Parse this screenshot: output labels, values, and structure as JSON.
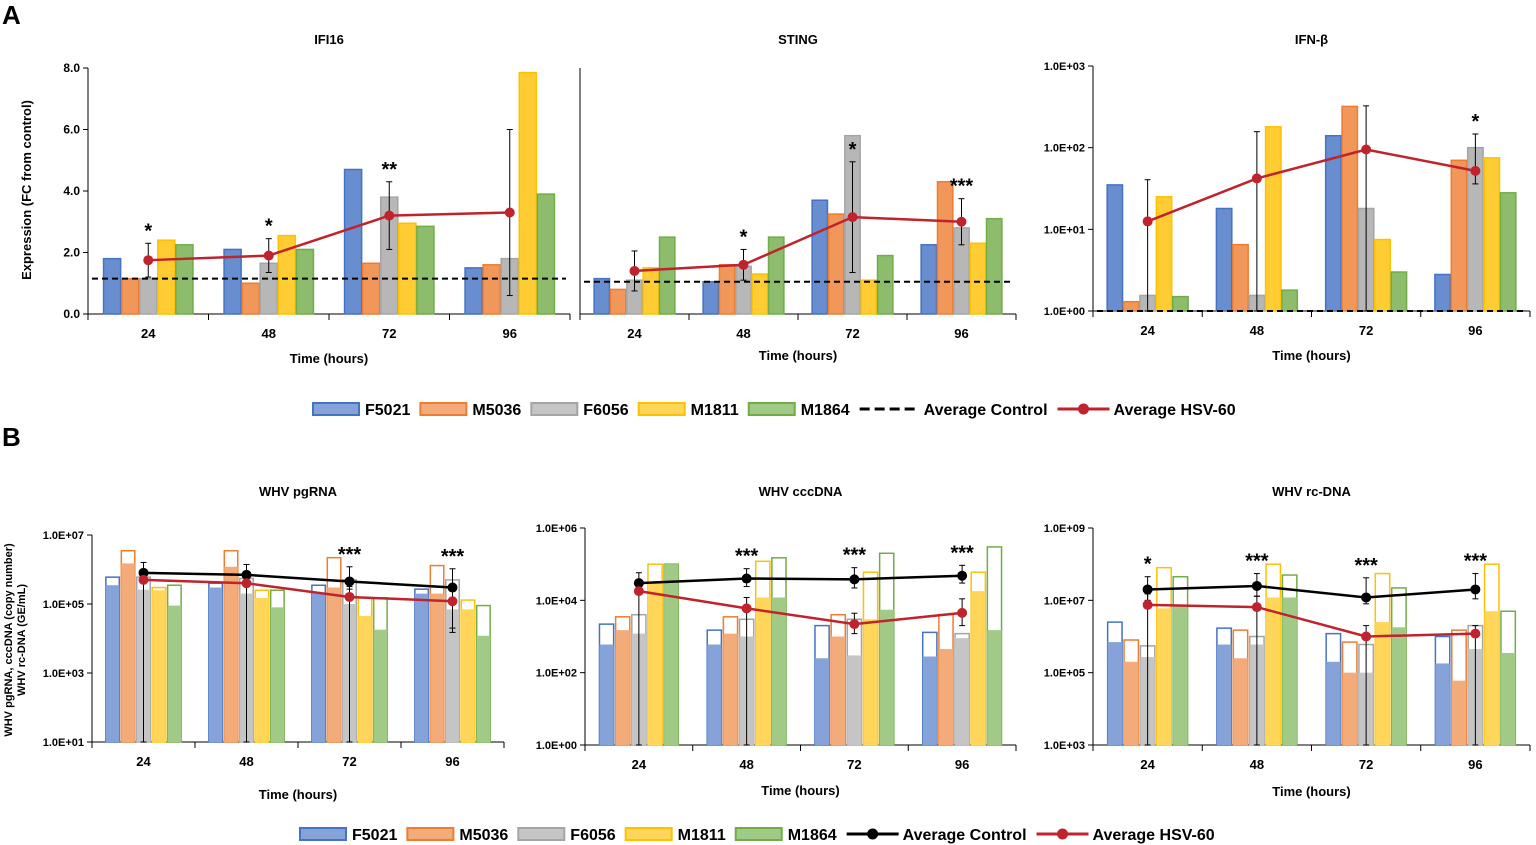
{
  "panel_labels": {
    "a": "A",
    "b": "B"
  },
  "legend_a": [
    {
      "label": "F5021",
      "kind": "bar",
      "color": "#4472C4"
    },
    {
      "label": "M5036",
      "kind": "bar",
      "color": "#ED7D31"
    },
    {
      "label": "F6056",
      "kind": "bar",
      "color": "#A5A5A5"
    },
    {
      "label": "M1811",
      "kind": "bar",
      "color": "#FFC000"
    },
    {
      "label": "M1864",
      "kind": "bar",
      "color": "#70AD47"
    },
    {
      "label": "Average Control",
      "kind": "dash",
      "color": "#000000"
    },
    {
      "label": "Average HSV-60",
      "kind": "line",
      "color": "#C0232C"
    }
  ],
  "legend_b": [
    {
      "label": "F5021",
      "kind": "bar",
      "color": "#4472C4"
    },
    {
      "label": "M5036",
      "kind": "bar",
      "color": "#ED7D31"
    },
    {
      "label": "F6056",
      "kind": "bar",
      "color": "#A5A5A5"
    },
    {
      "label": "M1811",
      "kind": "bar",
      "color": "#FFC000"
    },
    {
      "label": "M1864",
      "kind": "bar",
      "color": "#70AD47"
    },
    {
      "label": "Average Control",
      "kind": "line",
      "color": "#000000"
    },
    {
      "label": "Average HSV-60",
      "kind": "line",
      "color": "#C0232C"
    }
  ],
  "colors": {
    "F5021": "#4472C4",
    "M5036": "#ED7D31",
    "F6056": "#A5A5A5",
    "M1811": "#FFC000",
    "M1864": "#70AD47",
    "control": "#000000",
    "hsv": "#C0232C"
  },
  "axis_labels": {
    "a_y": "Expression (FC from control)",
    "b_y_line1": "WHV pgRNA, cccDNA (copy number)",
    "b_y_line2": "WHV rc-DNA (GE/mL)"
  },
  "chart_data": [
    {
      "id": "IFI16",
      "type": "bar",
      "scale": "linear",
      "title": "IFI16",
      "xlabel": "Time (hours)",
      "ylabel": "Expression (FC from control)",
      "categories": [
        "24",
        "48",
        "72",
        "96"
      ],
      "ylim": [
        0,
        8
      ],
      "yticks": [
        0,
        2,
        4,
        6,
        8
      ],
      "ytick_labels": [
        "0.0",
        "2.0",
        "4.0",
        "6.0",
        "8.0"
      ],
      "series": [
        {
          "name": "F5021",
          "values": [
            1.8,
            2.1,
            4.7,
            1.5
          ]
        },
        {
          "name": "M5036",
          "values": [
            1.15,
            1.0,
            1.65,
            1.6
          ]
        },
        {
          "name": "F6056",
          "values": [
            1.15,
            1.65,
            3.8,
            1.8
          ]
        },
        {
          "name": "M1811",
          "values": [
            2.4,
            2.55,
            2.95,
            7.85
          ]
        },
        {
          "name": "M1864",
          "values": [
            2.25,
            2.1,
            2.85,
            3.9
          ]
        }
      ],
      "control_line": {
        "type": "dashed",
        "value": 1.15
      },
      "hsv_line": {
        "values": [
          1.75,
          1.9,
          3.2,
          3.3
        ],
        "errors": [
          0.55,
          0.55,
          1.1,
          2.7
        ]
      },
      "significance": [
        "*",
        "*",
        "**",
        ""
      ]
    },
    {
      "id": "STING",
      "type": "bar",
      "scale": "linear",
      "title": "STING",
      "xlabel": "Time (hours)",
      "categories": [
        "24",
        "48",
        "72",
        "96"
      ],
      "ylim": [
        0,
        8
      ],
      "series": [
        {
          "name": "F5021",
          "values": [
            1.15,
            1.05,
            3.7,
            2.25
          ]
        },
        {
          "name": "M5036",
          "values": [
            0.8,
            1.6,
            3.25,
            4.3
          ]
        },
        {
          "name": "F6056",
          "values": [
            1.1,
            1.55,
            5.8,
            2.8
          ]
        },
        {
          "name": "M1811",
          "values": [
            1.5,
            1.3,
            1.1,
            2.3
          ]
        },
        {
          "name": "M1864",
          "values": [
            2.5,
            2.5,
            1.9,
            3.1
          ]
        }
      ],
      "control_line": {
        "type": "dashed",
        "value": 1.05
      },
      "hsv_line": {
        "values": [
          1.4,
          1.6,
          3.15,
          3.0
        ],
        "errors": [
          0.65,
          0.5,
          1.8,
          0.75
        ]
      },
      "significance": [
        "",
        "*",
        "*",
        "***"
      ]
    },
    {
      "id": "IFNB",
      "type": "bar",
      "scale": "log",
      "title": "IFN-β",
      "xlabel": "Time (hours)",
      "categories": [
        "24",
        "48",
        "72",
        "96"
      ],
      "ylim": [
        1,
        1000
      ],
      "ytick_values": [
        1,
        10,
        100,
        1000
      ],
      "ytick_labels": [
        "1.0E+00",
        "1.0E+01",
        "1.0E+02",
        "1.0E+03"
      ],
      "series": [
        {
          "name": "F5021",
          "values": [
            35,
            18,
            140,
            2.8
          ]
        },
        {
          "name": "M5036",
          "values": [
            1.3,
            6.5,
            320,
            70
          ]
        },
        {
          "name": "F6056",
          "values": [
            1.55,
            1.55,
            18,
            100
          ]
        },
        {
          "name": "M1811",
          "values": [
            25,
            180,
            7.5,
            75
          ]
        },
        {
          "name": "M1864",
          "values": [
            1.5,
            1.8,
            3.0,
            28
          ]
        }
      ],
      "control_line": {
        "type": "dashed",
        "value": 1.0
      },
      "hsv_line": {
        "values": [
          12.5,
          42,
          95,
          52
        ],
        "err_low": [
          12.5,
          42,
          95,
          16
        ],
        "err_high": [
          28,
          115,
          230,
          95
        ]
      },
      "significance": [
        "",
        "",
        "",
        "*"
      ]
    },
    {
      "id": "pgRNA",
      "type": "bar",
      "scale": "log",
      "title": "WHV pgRNA",
      "xlabel": "Time (hours)",
      "categories": [
        "24",
        "48",
        "72",
        "96"
      ],
      "ylim": [
        10,
        10000000
      ],
      "ytick_values": [
        10,
        1000,
        100000,
        10000000
      ],
      "ytick_labels": [
        "1.0E+01",
        "1.0E+03",
        "1.0E+05",
        "1.0E+07"
      ],
      "series": [
        {
          "name": "F5021",
          "control": [
            600000,
            400000,
            350000,
            270000
          ],
          "hsv": [
            350000,
            300000,
            200000,
            200000
          ]
        },
        {
          "name": "M5036",
          "control": [
            3500000,
            3500000,
            2200000,
            1300000
          ],
          "hsv": [
            1500000,
            1200000,
            300000,
            200000
          ]
        },
        {
          "name": "F6056",
          "control": [
            600000,
            550000,
            500000,
            500000
          ],
          "hsv": [
            260000,
            200000,
            100000,
            70000
          ]
        },
        {
          "name": "M1811",
          "control": [
            300000,
            250000,
            150000,
            130000
          ],
          "hsv": [
            250000,
            150000,
            45000,
            70000
          ]
        },
        {
          "name": "M1864",
          "control": [
            350000,
            250000,
            150000,
            90000
          ],
          "hsv": [
            90000,
            80000,
            18000,
            12000
          ]
        }
      ],
      "control_line": {
        "type": "line",
        "values": [
          800000,
          700000,
          450000,
          300000
        ],
        "err_low": [
          800000,
          700000,
          180000,
          280000
        ],
        "err_high": [
          800000,
          700000,
          750000,
          750000
        ]
      },
      "hsv_line": {
        "values": [
          500000,
          400000,
          160000,
          120000
        ],
        "err_low": [
          500000,
          400000,
          160000,
          105000
        ],
        "err_high": [
          500000,
          400000,
          160000,
          120000
        ]
      },
      "significance": [
        "",
        "",
        "***",
        "***"
      ]
    },
    {
      "id": "cccDNA",
      "type": "bar",
      "scale": "log",
      "title": "WHV cccDNA",
      "xlabel": "Time (hours)",
      "categories": [
        "24",
        "48",
        "72",
        "96"
      ],
      "ylim": [
        1,
        1000000
      ],
      "ytick_values": [
        1,
        100,
        10000,
        1000000
      ],
      "ytick_labels": [
        "1.0E+00",
        "1.0E+02",
        "1.0E+04",
        "1.0E+06"
      ],
      "series": [
        {
          "name": "F5021",
          "control": [
            2200,
            1500,
            2000,
            1300
          ],
          "hsv": [
            600,
            600,
            250,
            280
          ]
        },
        {
          "name": "M5036",
          "control": [
            3500,
            3500,
            4000,
            4000
          ],
          "hsv": [
            1500,
            1200,
            1000,
            450
          ]
        },
        {
          "name": "F6056",
          "control": [
            4000,
            3000,
            3000,
            1200
          ],
          "hsv": [
            1200,
            1000,
            300,
            900
          ]
        },
        {
          "name": "M1811",
          "control": [
            100000,
            120000,
            60000,
            60000
          ],
          "hsv": [
            30000,
            12000,
            3000,
            18000
          ]
        },
        {
          "name": "M1864",
          "control": [
            100000,
            150000,
            200000,
            300000
          ],
          "hsv": [
            100000,
            12000,
            5500,
            1500
          ]
        }
      ],
      "control_line": {
        "type": "line",
        "values": [
          30000,
          40000,
          38000,
          48000
        ],
        "err_low": [
          13000,
          16000,
          16000,
          18000
        ],
        "err_high": [
          28000,
          35000,
          42000,
          45000
        ]
      },
      "hsv_line": {
        "values": [
          18000,
          6000,
          2200,
          4500
        ],
        "err_low": [
          18000,
          6000,
          1000,
          2500
        ],
        "err_high": [
          18000,
          6000,
          2200,
          6500
        ]
      },
      "significance": [
        "",
        "***",
        "***",
        "***"
      ]
    },
    {
      "id": "rcDNA",
      "type": "bar",
      "scale": "log",
      "title": "WHV rc-DNA",
      "xlabel": "Time (hours)",
      "categories": [
        "24",
        "48",
        "72",
        "96"
      ],
      "ylim": [
        1000,
        1000000000
      ],
      "ytick_values": [
        1000,
        100000,
        10000000,
        1000000000
      ],
      "ytick_labels": [
        "1.0E+03",
        "1.0E+05",
        "1.0E+07",
        "1.0E+09"
      ],
      "series": [
        {
          "name": "F5021",
          "control": [
            2500000,
            1700000,
            1200000,
            1000000
          ],
          "hsv": [
            700000,
            600000,
            200000,
            180000
          ]
        },
        {
          "name": "M5036",
          "control": [
            800000,
            1500000,
            700000,
            1500000
          ],
          "hsv": [
            200000,
            250000,
            100000,
            60000
          ]
        },
        {
          "name": "F6056",
          "control": [
            550000,
            1000000,
            600000,
            2000000
          ],
          "hsv": [
            270000,
            600000,
            100000,
            450000
          ]
        },
        {
          "name": "M1811",
          "control": [
            80000000,
            100000000,
            55000000,
            100000000
          ],
          "hsv": [
            6000000,
            12000000,
            2500000,
            5000000
          ]
        },
        {
          "name": "M1864",
          "control": [
            45000000,
            50000000,
            22000000,
            5000000
          ],
          "hsv": [
            7500000,
            12000000,
            1800000,
            350000
          ]
        }
      ],
      "control_line": {
        "type": "line",
        "values": [
          20000000,
          25000000,
          12000000,
          20000000
        ],
        "err_low": [
          10000000,
          12000000,
          4000000,
          9000000
        ],
        "err_high": [
          25000000,
          30000000,
          30000000,
          35000000
        ]
      },
      "hsv_line": {
        "values": [
          7500000,
          6500000,
          1000000,
          1200000
        ],
        "err_low": [
          7500000,
          6500000,
          1000000,
          1200000
        ],
        "err_high": [
          7500000,
          6500000,
          1000000,
          800000
        ]
      },
      "significance": [
        "*",
        "***",
        "***",
        "***"
      ]
    }
  ]
}
